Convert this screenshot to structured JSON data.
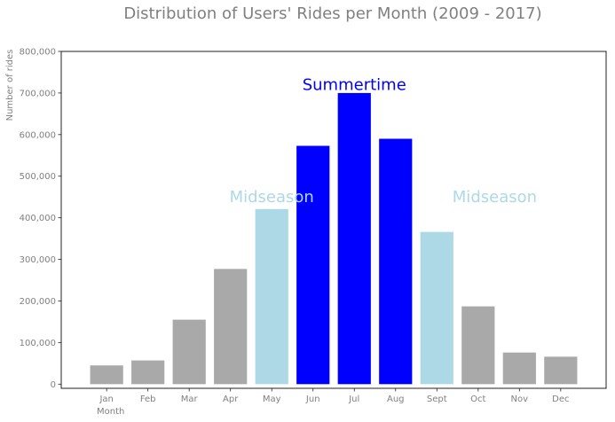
{
  "chart_data": {
    "type": "bar",
    "title": "Distribution of Users' Rides per Month (2009 - 2017)",
    "xlabel": "Month",
    "ylabel": "Number of rides",
    "categories": [
      "Jan",
      "Feb",
      "Mar",
      "Apr",
      "May",
      "Jun",
      "Jul",
      "Aug",
      "Sept",
      "Oct",
      "Nov",
      "Dec"
    ],
    "values": [
      45000,
      57000,
      155000,
      277000,
      421000,
      573000,
      700000,
      590000,
      366000,
      187000,
      76000,
      66000
    ],
    "ylim": [
      -10000,
      800000
    ],
    "yticks": [
      0,
      100000,
      200000,
      300000,
      400000,
      500000,
      600000,
      700000,
      800000
    ],
    "ytick_labels": [
      "0",
      "100,000",
      "200,000",
      "300,000",
      "400,000",
      "500,000",
      "600,000",
      "700,000",
      "800,000"
    ],
    "season_of_bar": [
      "off",
      "off",
      "off",
      "off",
      "mid",
      "summer",
      "summer",
      "summer",
      "mid",
      "off",
      "off",
      "off"
    ],
    "colors": {
      "off": "#a9a9a9",
      "mid": "#add8e6",
      "summer": "#0000ff"
    },
    "grid": false,
    "annotations": [
      {
        "text": "Summertime",
        "color": "#0000ff",
        "x": 6,
        "y": 720000
      },
      {
        "text": "Midseason",
        "color": "#add8e6",
        "x": 4,
        "y": 450000
      },
      {
        "text": "Midseason",
        "color": "#add8e6",
        "x": 9.4,
        "y": 450000
      }
    ]
  }
}
